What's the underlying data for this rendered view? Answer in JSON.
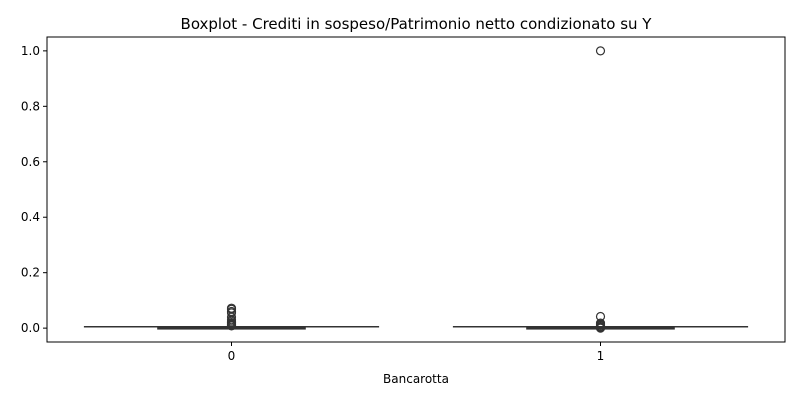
{
  "chart_data": {
    "type": "boxplot",
    "title": "Boxplot - Crediti in sospeso/Patrimonio netto condizionato su Y",
    "xlabel": "Bancarotta",
    "ylabel": "",
    "categories": [
      "0",
      "1"
    ],
    "ylim": [
      -0.05,
      1.05
    ],
    "yticks": [
      0.0,
      0.2,
      0.4,
      0.6,
      0.8,
      1.0
    ],
    "ytick_labels": [
      "0.0",
      "0.2",
      "0.4",
      "0.6",
      "0.8",
      "1.0"
    ],
    "boxes": [
      {
        "category": "0",
        "whisker_low": 0.0,
        "q1": 0.0,
        "median": 0.001,
        "q3": 0.002,
        "whisker_high": 0.005,
        "outliers": [
          0.008,
          0.01,
          0.012,
          0.015,
          0.018,
          0.02,
          0.025,
          0.03,
          0.04,
          0.055,
          0.06,
          0.068,
          0.072
        ]
      },
      {
        "category": "1",
        "whisker_low": 0.0,
        "q1": 0.0,
        "median": 0.001,
        "q3": 0.002,
        "whisker_high": 0.005,
        "outliers": [
          0.0,
          0.003,
          0.006,
          0.01,
          0.014,
          0.018,
          0.042,
          1.0
        ]
      }
    ],
    "grid": false,
    "legend": "none",
    "colors": {
      "line": "#333333",
      "box_fill": "#2f2f2f",
      "frame": "#000000"
    }
  }
}
